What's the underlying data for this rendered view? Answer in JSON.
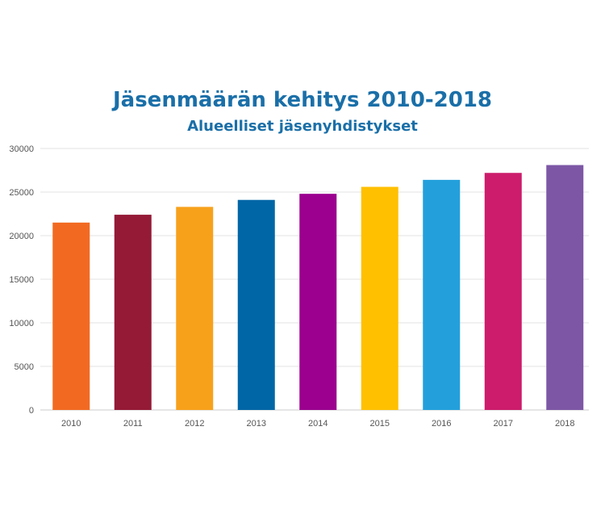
{
  "chart_data": {
    "type": "bar",
    "title": "Jäsenmäärän kehitys 2010-2018",
    "subtitle": "Alueelliset jäsenyhdistykset",
    "categories": [
      "2010",
      "2011",
      "2012",
      "2013",
      "2014",
      "2015",
      "2016",
      "2017",
      "2018"
    ],
    "values": [
      21500,
      22400,
      23300,
      24100,
      24800,
      25600,
      26400,
      27200,
      28100
    ],
    "bar_colors": [
      "#f26a21",
      "#941a36",
      "#f7a11b",
      "#0066a6",
      "#9b008f",
      "#ffc000",
      "#23a0dc",
      "#cc1c6b",
      "#7d57a5"
    ],
    "title_color": "#1a6fa8",
    "xlabel": "",
    "ylabel": "",
    "ylim": [
      0,
      30000
    ],
    "yticks": [
      "0",
      "5000",
      "10000",
      "15000",
      "20000",
      "25000",
      "30000"
    ],
    "grid": true,
    "legend": "none"
  }
}
